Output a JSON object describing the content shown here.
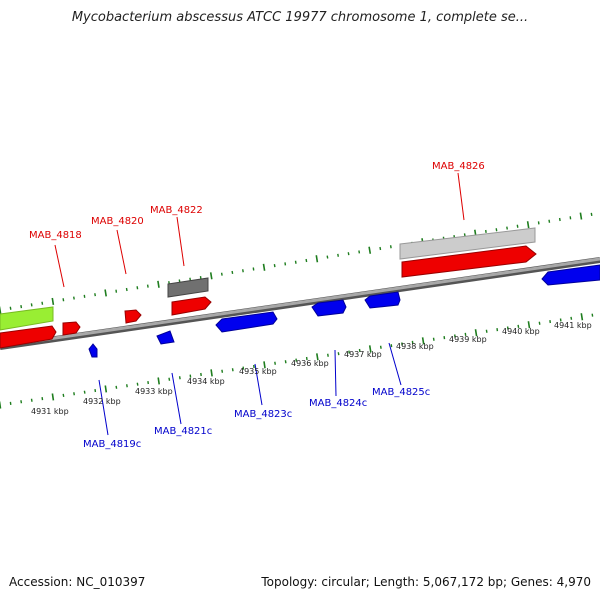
{
  "title": "Mycobacterium abscessus ATCC 19977 chromosome 1, complete se...",
  "accession": "Accession: NC_010397",
  "summary": "Topology: circular; Length: 5,067,172 bp; Genes: 4,970",
  "colors": {
    "backbone": "#8a8a8a",
    "tick": "#1e7d1e",
    "forward_label": "#dd0000",
    "reverse_label": "#0000cc",
    "forward_gene": "#ee0000",
    "reverse_gene": "#0000ee",
    "gray_feature": "#707070",
    "light_gray_feature": "#c8c8c8",
    "green_feature": "#99ee33"
  },
  "kbp_labels": [
    "4931 kbp",
    "4932 kbp",
    "4933 kbp",
    "4934 kbp",
    "4935 kbp",
    "4936 kbp",
    "4937 kbp",
    "4938 kbp",
    "4939 kbp",
    "4940 kbp",
    "4941 kbp"
  ],
  "forward_genes": [
    "MAB_4818",
    "MAB_4820",
    "MAB_4822",
    "MAB_4826"
  ],
  "reverse_genes": [
    "MAB_4819c",
    "MAB_4821c",
    "MAB_4823c",
    "MAB_4824c",
    "MAB_4825c"
  ]
}
